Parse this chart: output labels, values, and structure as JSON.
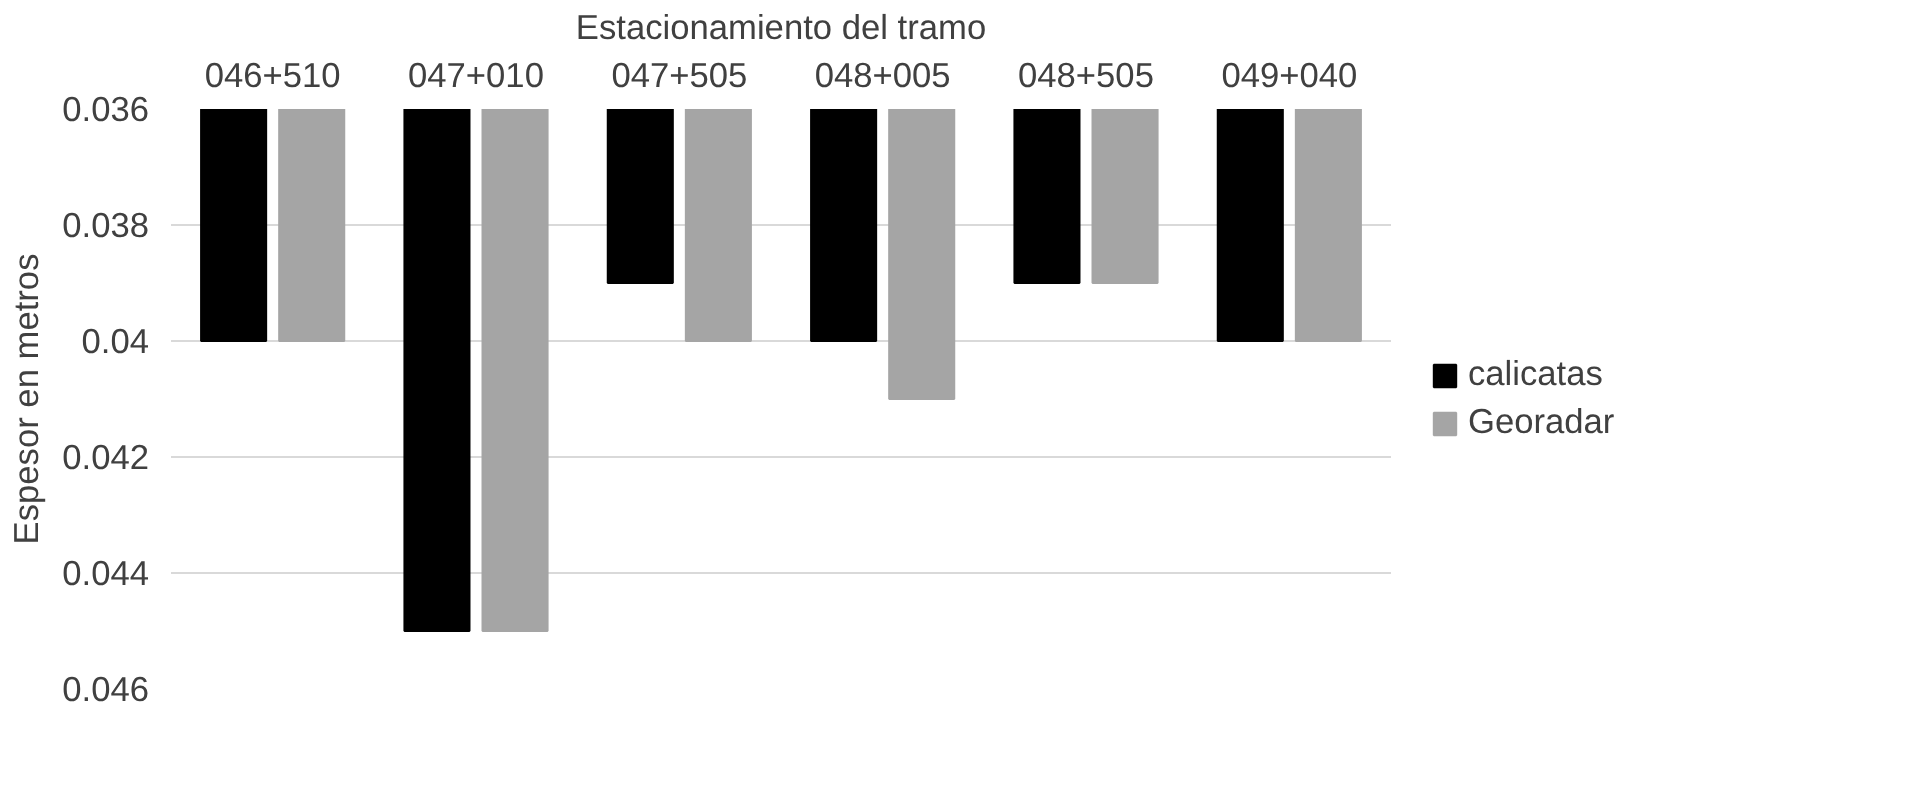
{
  "chart_data": {
    "type": "bar",
    "xlabel": "Estacionamiento del tramo",
    "ylabel": "Espesor en metros",
    "categories": [
      "046+510",
      "047+010",
      "047+505",
      "048+005",
      "048+505",
      "049+040"
    ],
    "series": [
      {
        "name": "calicatas",
        "color": "#000000",
        "values": [
          0.04,
          0.045,
          0.039,
          0.04,
          0.039,
          0.04
        ]
      },
      {
        "name": "Georadar",
        "color": "#a5a5a5",
        "values": [
          0.04,
          0.045,
          0.04,
          0.041,
          0.039,
          0.04
        ]
      }
    ],
    "ylim": [
      0.046,
      0.036
    ],
    "yticks": [
      0.036,
      0.038,
      0.04,
      0.042,
      0.044,
      0.046
    ],
    "grid": "y",
    "legend": "right"
  }
}
